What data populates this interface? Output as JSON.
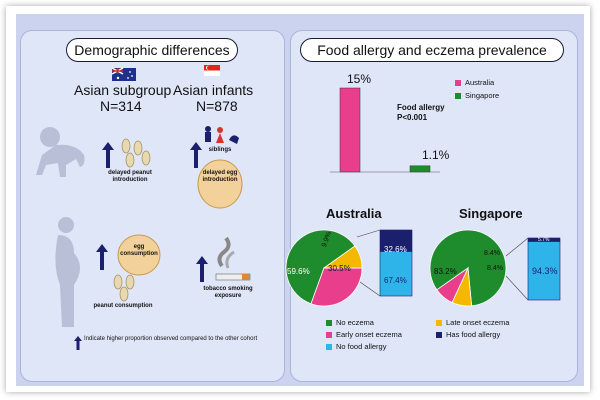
{
  "left_panel": {
    "title": "Demographic differences",
    "cohort_a": {
      "name": "Asian subgroup",
      "n": "N=314",
      "flag": "australia-flag-icon"
    },
    "cohort_b": {
      "name": "Asian infants",
      "n": "N=878",
      "flag": "singapore-flag-icon"
    },
    "labels": {
      "delayed_peanut": "delayed peanut introduction",
      "siblings": "siblings",
      "delayed_egg": "delayed egg introduction",
      "egg_consumption": "egg consumption",
      "peanut_consumption": "peanut consumption",
      "tobacco": "tobacco smoking exposure"
    },
    "footnote": "Indicate higher proportion observed compared to the other cohort"
  },
  "right_panel": {
    "title": "Food allergy and eczema prevalence",
    "stat_label": "Food allergy",
    "stat_p": "P<0.001",
    "bar_labels": {
      "australia": "15%",
      "singapore": "1.1%"
    },
    "legend_top": [
      {
        "label": "Australia",
        "color": "#e83e8c"
      },
      {
        "label": "Singapore",
        "color": "#1e8c2c"
      }
    ],
    "australia_title": "Australia",
    "singapore_title": "Singapore",
    "australia_pie_labels": {
      "no_eczema": "59.6%",
      "late": "9.9%",
      "early": "30.5%"
    },
    "australia_bar_labels": {
      "has_fa": "32.6%",
      "no_fa": "67.4%"
    },
    "singapore_pie_labels": {
      "no_eczema": "83.2%",
      "late": "8.4%",
      "early": "8.4%"
    },
    "singapore_bar_labels": {
      "has_fa": "5.7%",
      "no_fa": "94.3%"
    },
    "legend_bottom": [
      {
        "label": "No eczema",
        "color": "#1e8c2c"
      },
      {
        "label": "Late onset eczema",
        "color": "#f5b800"
      },
      {
        "label": "Early onset eczema",
        "color": "#e83e8c"
      },
      {
        "label": "Has food allergy",
        "color": "#1a1f6e"
      },
      {
        "label": "No food allergy",
        "color": "#2fb4ea"
      }
    ]
  },
  "chart_data": [
    {
      "type": "bar",
      "categories": [
        "Australia",
        "Singapore"
      ],
      "values": [
        15,
        1.1
      ],
      "ylabel": "",
      "title": ""
    },
    {
      "type": "pie",
      "title": "Australia",
      "categories": [
        "No eczema",
        "Late onset eczema",
        "Early onset eczema"
      ],
      "values": [
        59.6,
        9.9,
        30.5
      ]
    },
    {
      "type": "bar",
      "title": "Australia",
      "categories": [
        "Has food allergy",
        "No food allergy"
      ],
      "values": [
        32.6,
        67.4
      ]
    },
    {
      "type": "pie",
      "title": "Singapore",
      "categories": [
        "No eczema",
        "Late onset eczema",
        "Early onset eczema"
      ],
      "values": [
        83.2,
        8.4,
        8.4
      ]
    },
    {
      "type": "bar",
      "title": "Singapore",
      "categories": [
        "Has food allergy",
        "No food allergy"
      ],
      "values": [
        5.7,
        94.3
      ]
    }
  ],
  "colors": {
    "arrow": "#1a1f6e",
    "green": "#1e8c2c",
    "pink": "#e83e8c",
    "yellow": "#f5b800",
    "navy": "#1a1f6e",
    "cyan": "#2fb4ea"
  }
}
